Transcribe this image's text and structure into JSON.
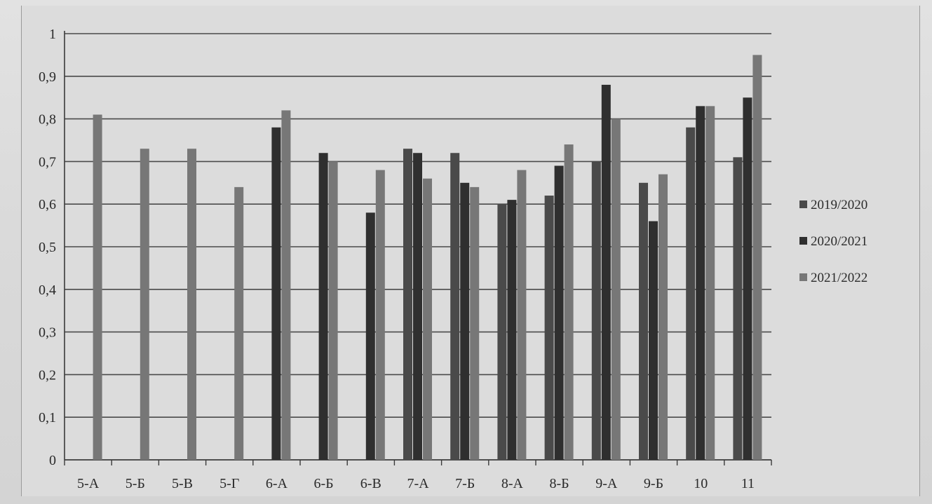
{
  "chart_data": {
    "type": "bar",
    "title": "",
    "xlabel": "",
    "ylabel": "",
    "ylim": [
      0,
      1
    ],
    "yticks": [
      0,
      0.1,
      0.2,
      0.3,
      0.4,
      0.5,
      0.6,
      0.7,
      0.8,
      0.9,
      1
    ],
    "ytick_labels": [
      "0",
      "0,1",
      "0,2",
      "0,3",
      "0,4",
      "0,5",
      "0,6",
      "0,7",
      "0,8",
      "0,9",
      "1"
    ],
    "grid": "horizontal",
    "legend_position": "right",
    "categories": [
      "5-А",
      "5-Б",
      "5-В",
      "5-Г",
      "6-А",
      "6-Б",
      "6-В",
      "7-А",
      "7-Б",
      "8-А",
      "8-Б",
      "9-А",
      "9-Б",
      "10",
      "11"
    ],
    "series": [
      {
        "name": "2019/2020",
        "color": "#4a4a4a",
        "values": [
          null,
          null,
          null,
          null,
          null,
          null,
          null,
          0.73,
          0.72,
          0.6,
          0.62,
          0.7,
          0.65,
          0.78,
          0.71
        ]
      },
      {
        "name": "2020/2021",
        "color": "#2f2f2f",
        "values": [
          null,
          null,
          null,
          null,
          0.78,
          0.72,
          0.58,
          0.72,
          0.65,
          0.61,
          0.69,
          0.88,
          0.56,
          0.83,
          0.85
        ]
      },
      {
        "name": "2021/2022",
        "color": "#777777",
        "values": [
          0.81,
          0.73,
          0.73,
          0.64,
          0.82,
          0.7,
          0.68,
          0.66,
          0.64,
          0.68,
          0.74,
          0.8,
          0.67,
          0.83,
          0.95
        ]
      }
    ]
  }
}
